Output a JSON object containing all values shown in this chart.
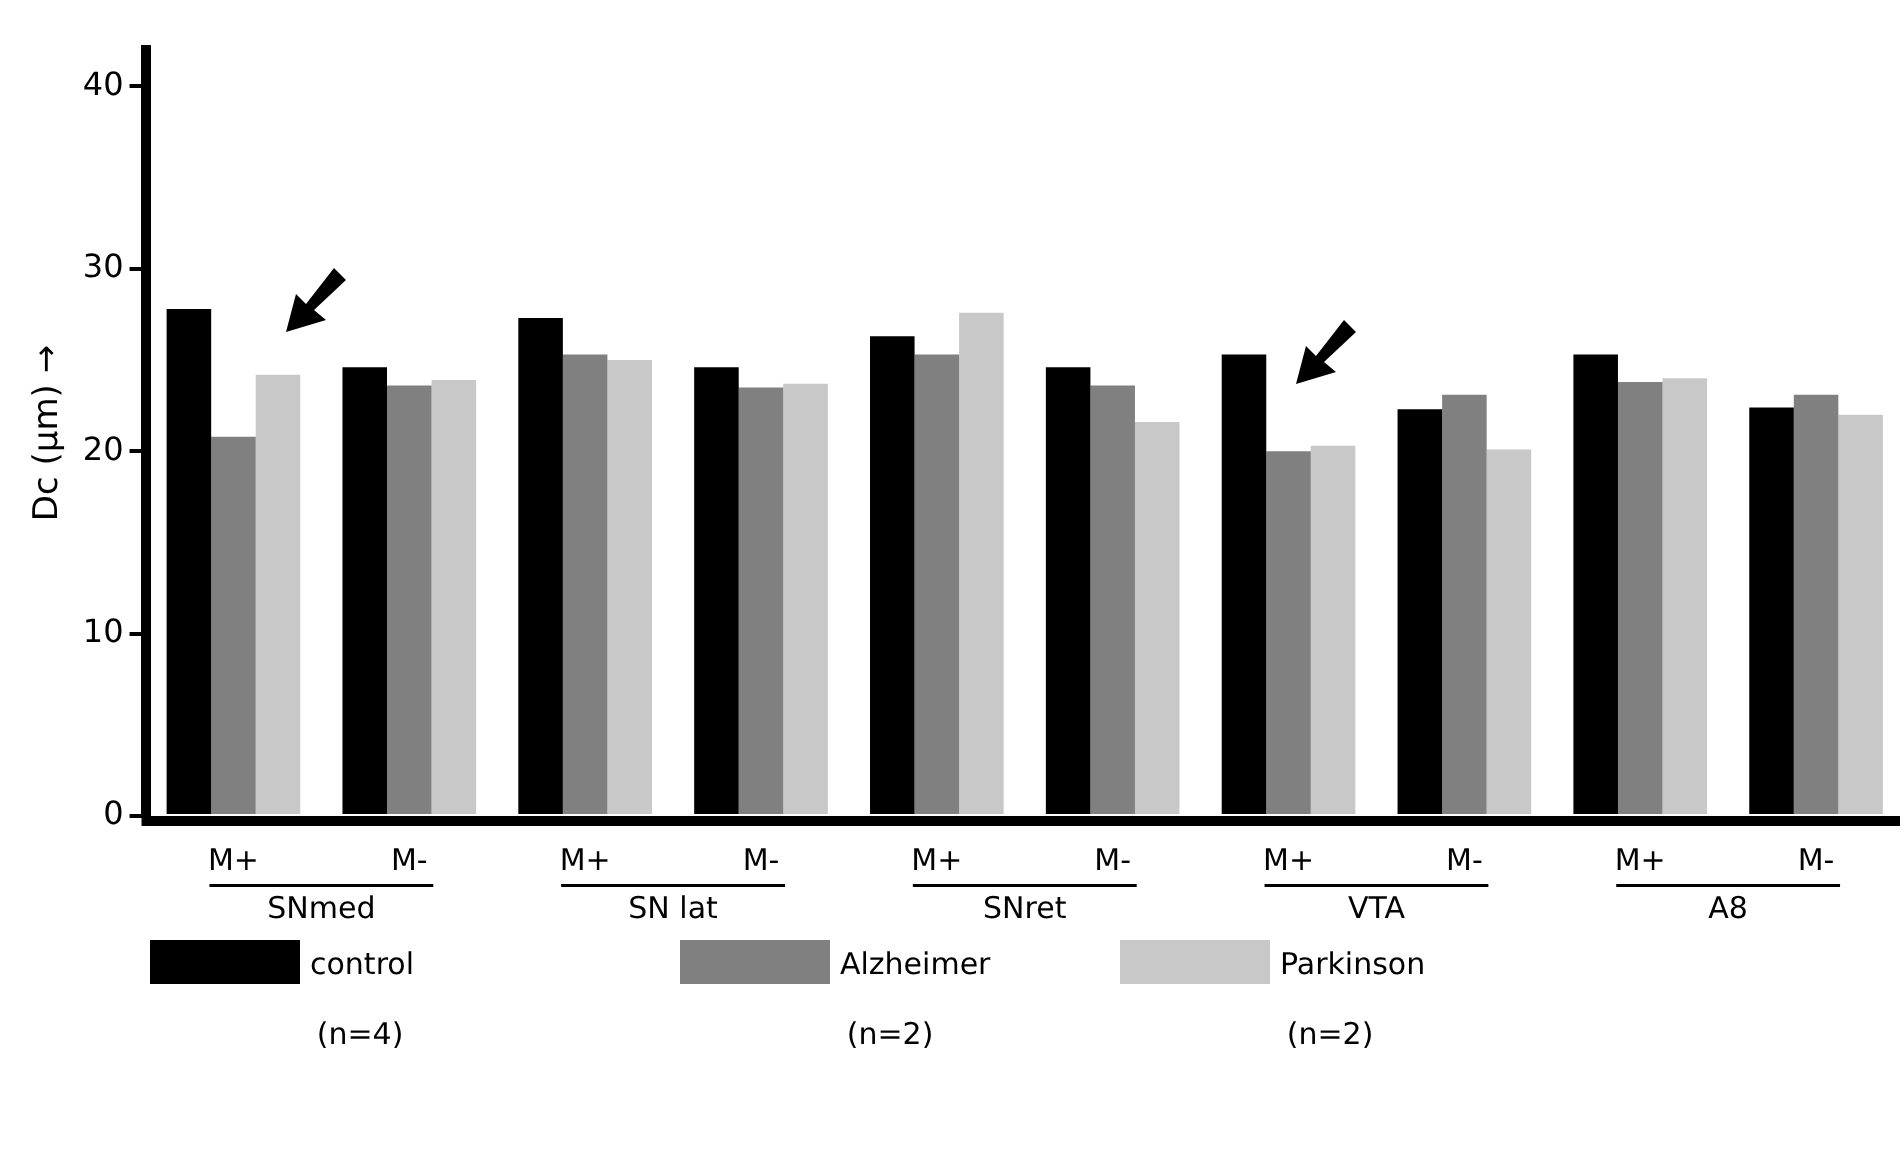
{
  "chart_data": {
    "type": "bar",
    "categories": [
      "M+",
      "M-",
      "M+",
      "M-",
      "M+",
      "M-",
      "M+",
      "M-",
      "M+",
      "M-"
    ],
    "series": [
      {
        "name": "control",
        "color": "#000000",
        "values": [
          27.8,
          24.6,
          27.3,
          24.6,
          26.3,
          24.6,
          25.3,
          22.3,
          25.3,
          22.4
        ]
      },
      {
        "name": "Alzheimer",
        "color": "#808080",
        "values": [
          20.8,
          23.6,
          25.3,
          23.5,
          25.3,
          23.6,
          20.0,
          23.1,
          23.8,
          23.1
        ]
      },
      {
        "name": "Parkinson",
        "color": "#c8c8c8",
        "values": [
          24.2,
          23.9,
          25.0,
          23.7,
          27.6,
          21.6,
          20.3,
          20.1,
          24.0,
          22.0
        ]
      }
    ],
    "ylabel": "Dc (µm) →",
    "ylim": [
      0,
      42
    ],
    "yticks": [
      0,
      10,
      20,
      30,
      40
    ],
    "annotations": [
      "SNmed",
      "SN lat",
      "SNret",
      "VTA",
      "A8",
      "(n=4)",
      "(n=2)",
      "(n=2)"
    ],
    "grid": false,
    "legend": "bottom"
  }
}
